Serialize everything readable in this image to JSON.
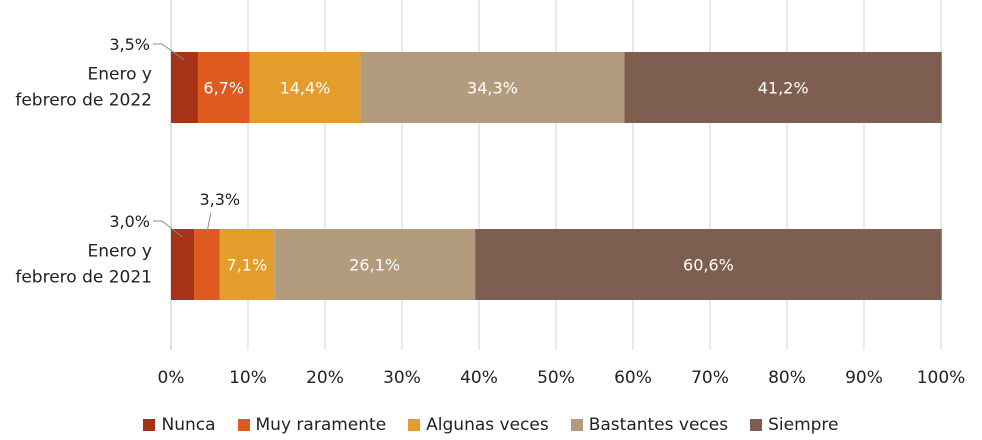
{
  "chart_data": {
    "type": "bar",
    "orientation": "horizontal",
    "stacked": true,
    "categories": [
      "Enero y febrero de 2022",
      "Enero y febrero de 2021"
    ],
    "category_label_lines": [
      [
        "Enero y",
        "febrero de 2022"
      ],
      [
        "Enero y",
        "febrero de 2021"
      ]
    ],
    "series": [
      {
        "name": "Nunca",
        "color": "#A63217",
        "values": [
          3.5,
          3.0
        ],
        "labels": [
          "3,5%",
          "3,0%"
        ]
      },
      {
        "name": "Muy raramente",
        "color": "#DE5A1E",
        "values": [
          6.7,
          3.3
        ],
        "labels": [
          "6,7%",
          "3,3%"
        ]
      },
      {
        "name": "Algunas veces",
        "color": "#E49C2B",
        "values": [
          14.4,
          7.1
        ],
        "labels": [
          "14,4%",
          "7,1%"
        ]
      },
      {
        "name": "Bastantes veces",
        "color": "#B29C7D",
        "values": [
          34.3,
          26.1
        ],
        "labels": [
          "34,3%",
          "26,1%"
        ]
      },
      {
        "name": "Siempre",
        "color": "#7E5E51",
        "values": [
          41.2,
          60.6
        ],
        "labels": [
          "41,2%",
          "60,6%"
        ]
      }
    ],
    "xlim": [
      0,
      100
    ],
    "xticks": [
      0,
      10,
      20,
      30,
      40,
      50,
      60,
      70,
      80,
      90,
      100
    ],
    "xtick_labels": [
      "0%",
      "10%",
      "20%",
      "30%",
      "40%",
      "50%",
      "60%",
      "70%",
      "80%",
      "90%",
      "100%"
    ],
    "grid": "vertical",
    "legend": "bottom",
    "title": "",
    "xlabel": "",
    "ylabel": ""
  }
}
